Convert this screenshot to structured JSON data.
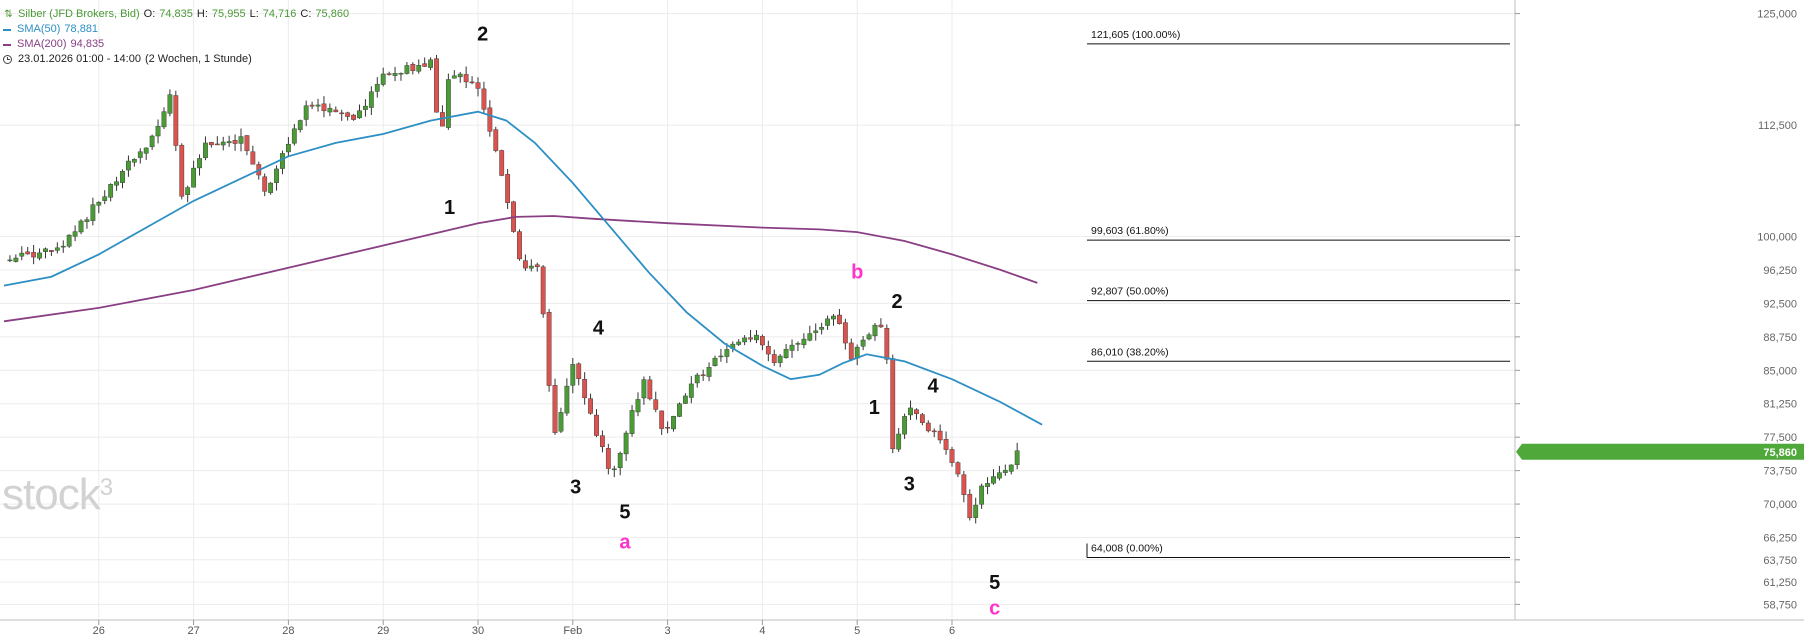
{
  "legend": {
    "instrument": "Silber (JFD Brokers, Bid)",
    "ohlc": {
      "open_label": "O:",
      "open": "74,835",
      "high_label": "H:",
      "high": "75,955",
      "low_label": "L:",
      "low": "74,716",
      "close_label": "C:",
      "close": "75,860"
    },
    "sma50": {
      "label": "SMA(50)",
      "value": "78,881",
      "color": "#2e8fc4"
    },
    "sma200": {
      "label": "SMA(200)",
      "value": "94,835",
      "color": "#8a3f84"
    },
    "period": "23.01.2026 01:00 - 14:00",
    "interval": "(2 Wochen, 1 Stunde)",
    "icons": {
      "symbol": "candlestick-icon",
      "clock": "clock-icon"
    }
  },
  "watermark": {
    "text": "stock",
    "sup": "3"
  },
  "chart_data": {
    "type": "candlestick",
    "title": "Silber (JFD Brokers, Bid)",
    "y_scale": "linear",
    "ylim": [
      57000,
      126300
    ],
    "y_ticks": [
      125000,
      112500,
      100000,
      96250,
      92500,
      88750,
      85000,
      81250,
      77500,
      73750,
      70000,
      66250,
      63750,
      61250,
      58750
    ],
    "y_tick_labels": [
      "125,000",
      "112,500",
      "100,000",
      "96,250",
      "92,500",
      "88,750",
      "85,000",
      "81,250",
      "77,500",
      "73,750",
      "70,000",
      "66,250",
      "63,750",
      "61,250",
      "58,750"
    ],
    "x_ticks": [
      "26",
      "27",
      "28",
      "29",
      "30",
      "Feb",
      "3",
      "4",
      "5",
      "6"
    ],
    "last_price": "75,860",
    "last_price_value": 75860,
    "up_color": "#4a9a36",
    "down_color": "#d9534f",
    "key_points": [
      {
        "t": 0,
        "v": 97.5
      },
      {
        "t": 0.6,
        "v": 98.5
      },
      {
        "t": 0.85,
        "v": 102
      },
      {
        "t": 1.3,
        "v": 108
      },
      {
        "t": 1.55,
        "v": 110.5
      },
      {
        "t": 1.75,
        "v": 116
      },
      {
        "t": 1.88,
        "v": 104
      },
      {
        "t": 2.1,
        "v": 110
      },
      {
        "t": 2.5,
        "v": 111
      },
      {
        "t": 2.75,
        "v": 105
      },
      {
        "t": 3.2,
        "v": 115
      },
      {
        "t": 3.7,
        "v": 113
      },
      {
        "t": 4.0,
        "v": 118
      },
      {
        "t": 4.5,
        "v": 119.5
      },
      {
        "t": 4.6,
        "v": 110
      },
      {
        "t": 4.7,
        "v": 118.5
      },
      {
        "t": 5.0,
        "v": 117
      },
      {
        "t": 5.2,
        "v": 109
      },
      {
        "t": 5.45,
        "v": 97
      },
      {
        "t": 5.65,
        "v": 96.5
      },
      {
        "t": 5.8,
        "v": 77
      },
      {
        "t": 6.0,
        "v": 86
      },
      {
        "t": 6.25,
        "v": 78
      },
      {
        "t": 6.42,
        "v": 73
      },
      {
        "t": 6.6,
        "v": 79.5
      },
      {
        "t": 6.75,
        "v": 84
      },
      {
        "t": 6.95,
        "v": 78
      },
      {
        "t": 7.3,
        "v": 84
      },
      {
        "t": 7.65,
        "v": 87.5
      },
      {
        "t": 7.95,
        "v": 89
      },
      {
        "t": 8.1,
        "v": 85.5
      },
      {
        "t": 8.4,
        "v": 88.5
      },
      {
        "t": 8.7,
        "v": 90.5
      },
      {
        "t": 8.78,
        "v": 92
      },
      {
        "t": 8.92,
        "v": 86
      },
      {
        "t": 9.15,
        "v": 89.5
      },
      {
        "t": 9.3,
        "v": 90
      },
      {
        "t": 9.35,
        "v": 75.5
      },
      {
        "t": 9.55,
        "v": 81
      },
      {
        "t": 9.8,
        "v": 78
      },
      {
        "t": 10.05,
        "v": 74
      },
      {
        "t": 10.18,
        "v": 68.5
      },
      {
        "t": 10.35,
        "v": 72.5
      },
      {
        "t": 10.55,
        "v": 73.5
      },
      {
        "t": 10.65,
        "v": 75.2
      },
      {
        "t": 10.72,
        "v": 75.86
      }
    ],
    "sma50": [
      {
        "t": 0,
        "v": 94.5
      },
      {
        "t": 0.5,
        "v": 95.5
      },
      {
        "t": 1.0,
        "v": 98
      },
      {
        "t": 1.5,
        "v": 101
      },
      {
        "t": 2.0,
        "v": 104
      },
      {
        "t": 2.5,
        "v": 106.5
      },
      {
        "t": 3.0,
        "v": 109
      },
      {
        "t": 3.5,
        "v": 110.5
      },
      {
        "t": 4.0,
        "v": 111.5
      },
      {
        "t": 4.5,
        "v": 113
      },
      {
        "t": 5.0,
        "v": 114
      },
      {
        "t": 5.3,
        "v": 113
      },
      {
        "t": 5.6,
        "v": 110.5
      },
      {
        "t": 6.0,
        "v": 106
      },
      {
        "t": 6.4,
        "v": 101
      },
      {
        "t": 6.8,
        "v": 96
      },
      {
        "t": 7.2,
        "v": 91.5
      },
      {
        "t": 7.6,
        "v": 88
      },
      {
        "t": 8.0,
        "v": 85.5
      },
      {
        "t": 8.3,
        "v": 84
      },
      {
        "t": 8.6,
        "v": 84.5
      },
      {
        "t": 8.85,
        "v": 85.8
      },
      {
        "t": 9.1,
        "v": 86.8
      },
      {
        "t": 9.5,
        "v": 86
      },
      {
        "t": 10.0,
        "v": 84
      },
      {
        "t": 10.5,
        "v": 81.5
      },
      {
        "t": 10.95,
        "v": 78.9
      }
    ],
    "sma200": [
      {
        "t": 0,
        "v": 90.5
      },
      {
        "t": 1.0,
        "v": 92
      },
      {
        "t": 2.0,
        "v": 94
      },
      {
        "t": 3.0,
        "v": 96.5
      },
      {
        "t": 4.0,
        "v": 99
      },
      {
        "t": 5.0,
        "v": 101.5
      },
      {
        "t": 5.4,
        "v": 102.2
      },
      {
        "t": 5.8,
        "v": 102.3
      },
      {
        "t": 6.2,
        "v": 102
      },
      {
        "t": 7.0,
        "v": 101.5
      },
      {
        "t": 8.0,
        "v": 101
      },
      {
        "t": 8.6,
        "v": 100.8
      },
      {
        "t": 9.0,
        "v": 100.5
      },
      {
        "t": 9.5,
        "v": 99.5
      },
      {
        "t": 10.0,
        "v": 98
      },
      {
        "t": 10.5,
        "v": 96.3
      },
      {
        "t": 10.9,
        "v": 94.8
      }
    ],
    "fibonacci_levels": [
      {
        "label": "121,605 (100.00%)",
        "value": 121605
      },
      {
        "label": "99,603 (61.80%)",
        "value": 99603
      },
      {
        "label": "92,807 (50.00%)",
        "value": 92807
      },
      {
        "label": "86,010 (38.20%)",
        "value": 86010
      },
      {
        "label": "64,008 (0.00%)",
        "value": 64008
      }
    ],
    "wave_labels": [
      {
        "text": "2",
        "t": 5.05,
        "v": 122.0,
        "color": "#111111"
      },
      {
        "text": "1",
        "t": 4.7,
        "v": 102.5,
        "color": "#111111"
      },
      {
        "text": "4",
        "t": 6.27,
        "v": 89.0,
        "color": "#111111"
      },
      {
        "text": "3",
        "t": 6.03,
        "v": 71.2,
        "color": "#111111"
      },
      {
        "text": "5",
        "t": 6.55,
        "v": 68.4,
        "color": "#111111"
      },
      {
        "text": "a",
        "t": 6.55,
        "v": 65.0,
        "color": "#ff33cc"
      },
      {
        "text": "b",
        "t": 9.0,
        "v": 95.3,
        "color": "#ff33cc"
      },
      {
        "text": "2",
        "t": 9.42,
        "v": 92.0,
        "color": "#111111"
      },
      {
        "text": "1",
        "t": 9.18,
        "v": 80.1,
        "color": "#111111"
      },
      {
        "text": "4",
        "t": 9.8,
        "v": 82.5,
        "color": "#111111"
      },
      {
        "text": "3",
        "t": 9.55,
        "v": 71.5,
        "color": "#111111"
      },
      {
        "text": "5",
        "t": 10.45,
        "v": 60.5,
        "color": "#111111"
      },
      {
        "text": "c",
        "t": 10.45,
        "v": 57.6,
        "color": "#ff33cc"
      }
    ],
    "grid": true,
    "legend_position": "top-left"
  }
}
